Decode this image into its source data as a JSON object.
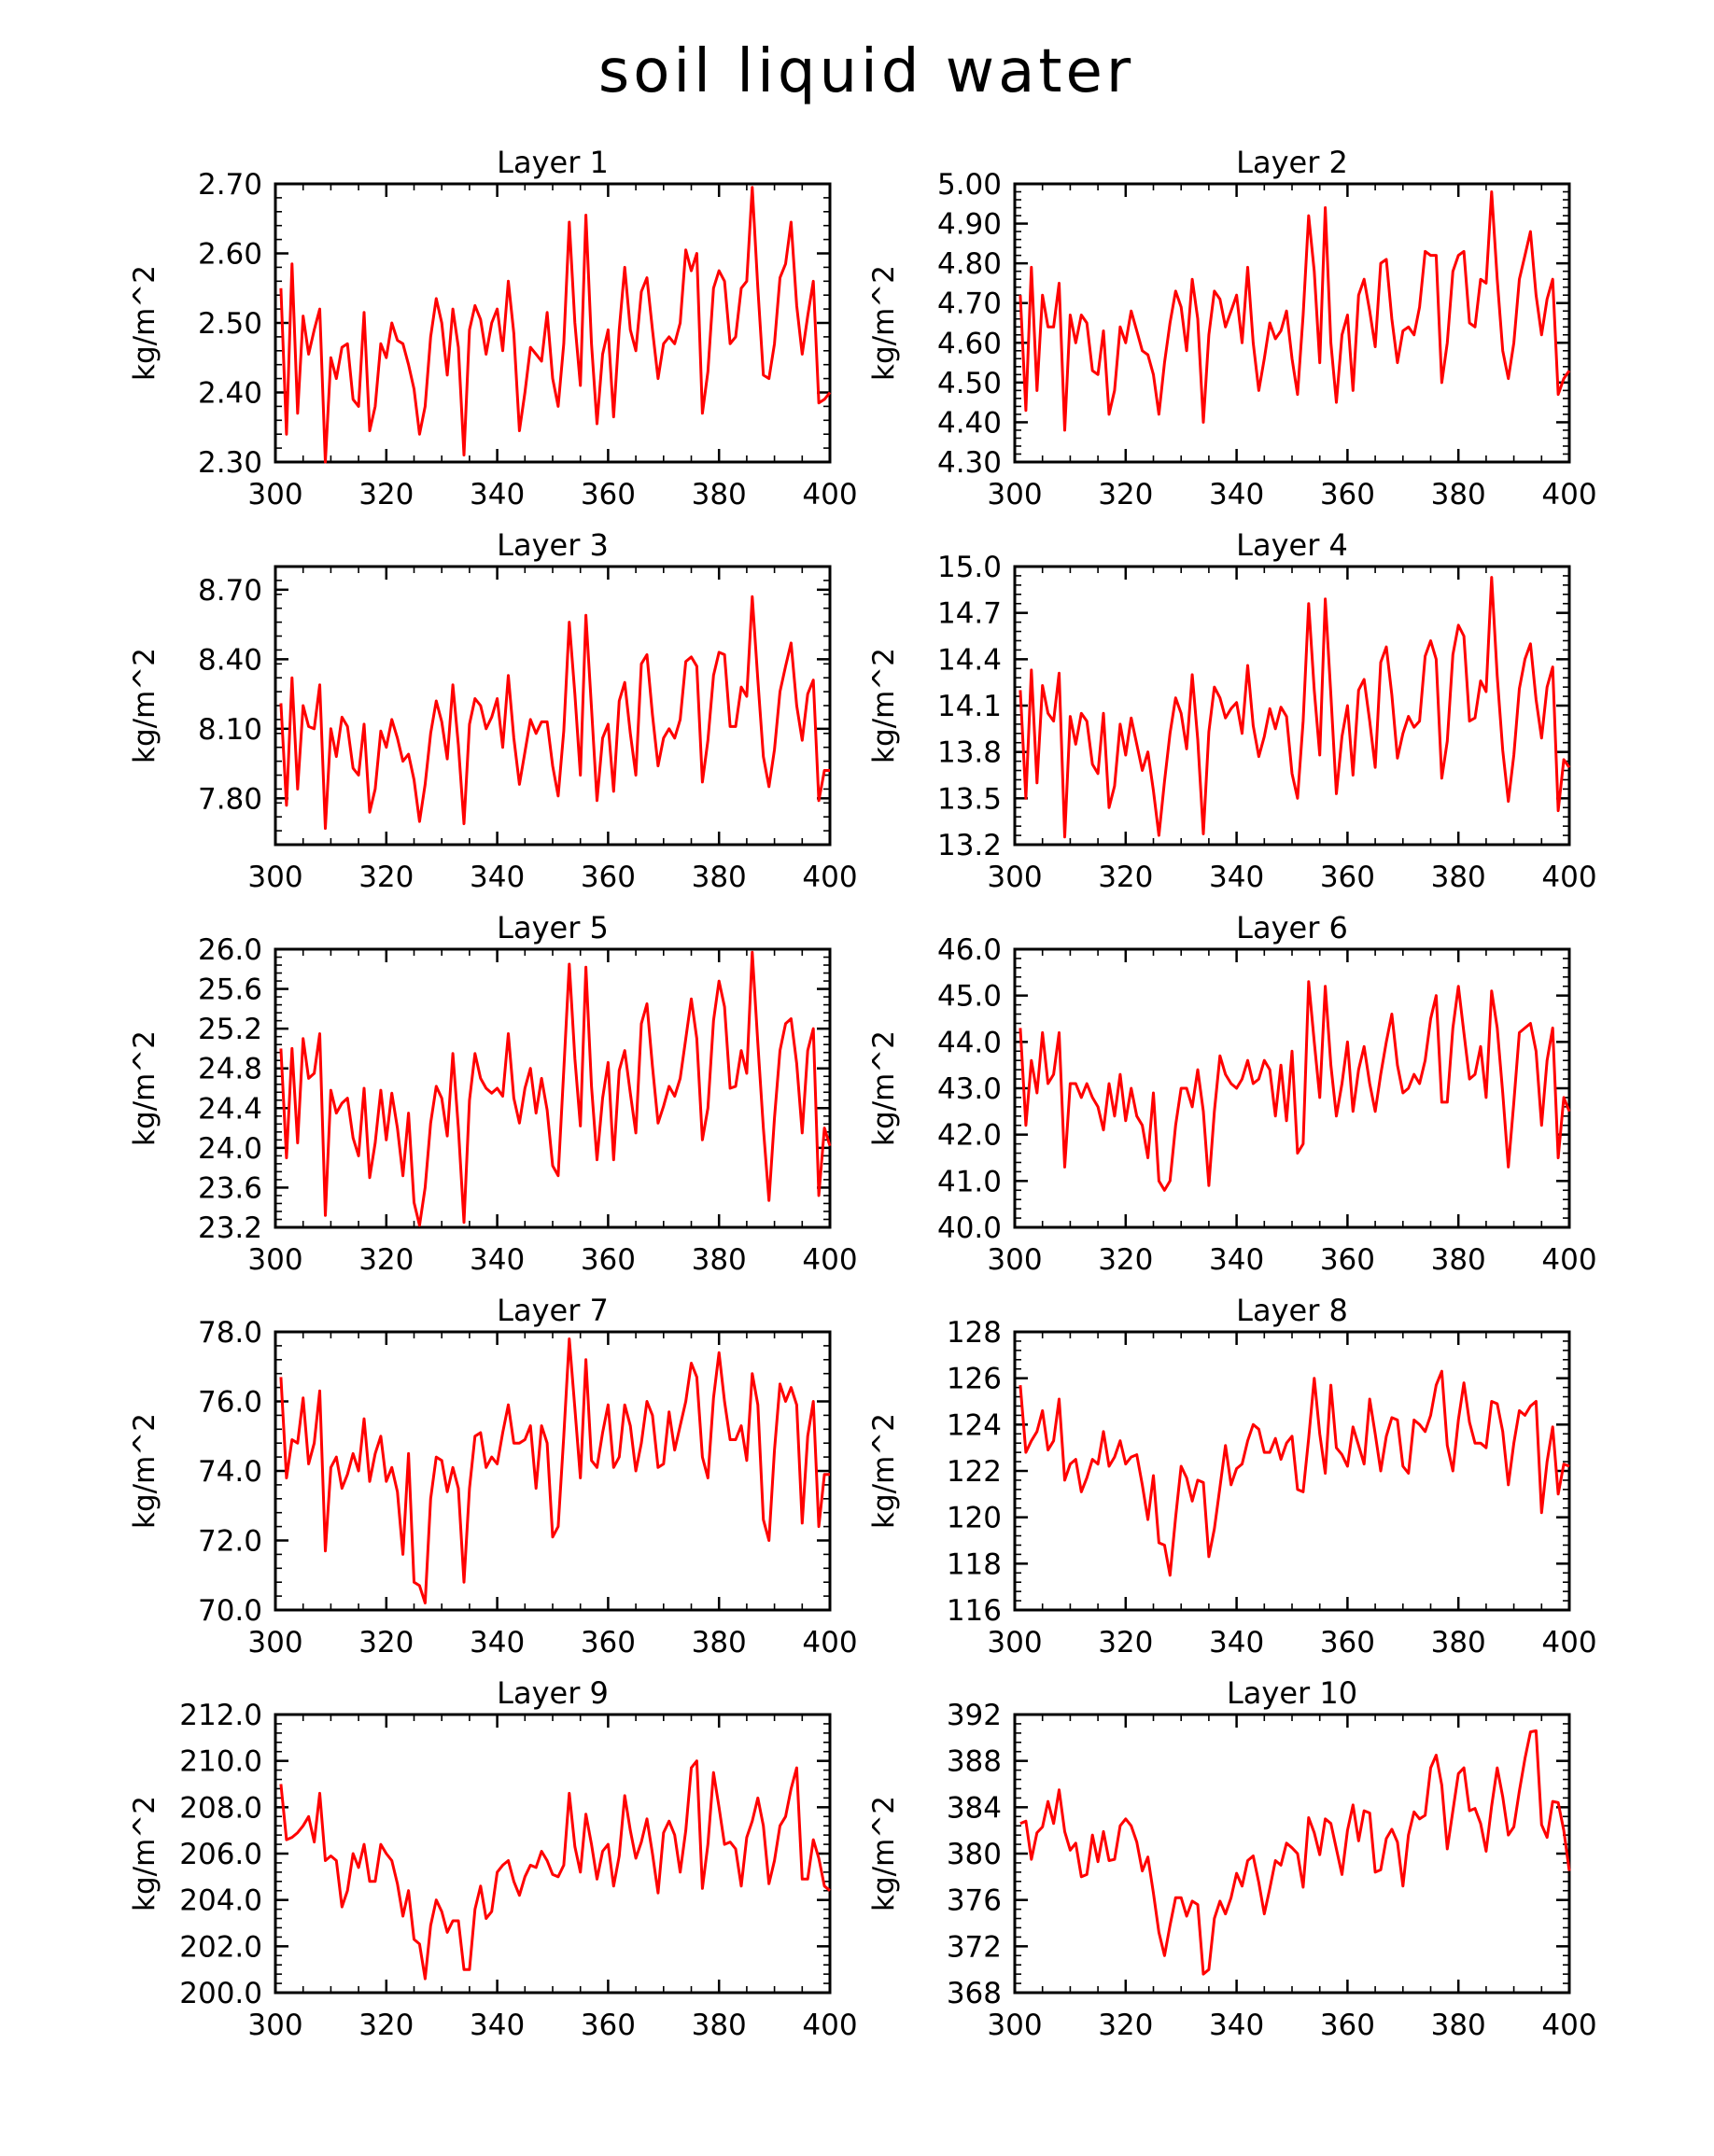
{
  "title": "soil liquid water",
  "colors": {
    "line": "#ff0000",
    "axis": "#000000",
    "background": "#ffffff"
  },
  "chart_data": [
    {
      "type": "line",
      "title": "Layer 1",
      "xlabel": "",
      "ylabel": "kg/m^2",
      "xlim": [
        300,
        400
      ],
      "ylim": [
        2.3,
        2.7
      ],
      "xticks": [
        300,
        320,
        340,
        360,
        380,
        400
      ],
      "yticks": [
        "2.30",
        "2.40",
        "2.50",
        "2.60",
        "2.70"
      ],
      "x_start": 301,
      "x_step": 1,
      "values": [
        2.55,
        2.34,
        2.585,
        2.37,
        2.51,
        2.455,
        2.49,
        2.52,
        2.3,
        2.45,
        2.42,
        2.465,
        2.47,
        2.39,
        2.38,
        2.515,
        2.345,
        2.38,
        2.47,
        2.45,
        2.5,
        2.475,
        2.47,
        2.44,
        2.405,
        2.34,
        2.38,
        2.48,
        2.535,
        2.5,
        2.425,
        2.52,
        2.465,
        2.31,
        2.49,
        2.525,
        2.505,
        2.455,
        2.5,
        2.52,
        2.46,
        2.56,
        2.485,
        2.345,
        2.4,
        2.465,
        2.455,
        2.445,
        2.515,
        2.42,
        2.38,
        2.47,
        2.645,
        2.5,
        2.41,
        2.655,
        2.47,
        2.355,
        2.455,
        2.49,
        2.365,
        2.49,
        2.58,
        2.49,
        2.46,
        2.545,
        2.565,
        2.49,
        2.42,
        2.47,
        2.48,
        2.47,
        2.5,
        2.605,
        2.575,
        2.6,
        2.37,
        2.43,
        2.55,
        2.575,
        2.56,
        2.47,
        2.48,
        2.55,
        2.56,
        2.695,
        2.55,
        2.425,
        2.42,
        2.47,
        2.565,
        2.585,
        2.645,
        2.525,
        2.455,
        2.51,
        2.56,
        2.385,
        2.39,
        2.4
      ]
    },
    {
      "type": "line",
      "title": "Layer 2",
      "xlabel": "",
      "ylabel": "kg/m^2",
      "xlim": [
        300,
        400
      ],
      "ylim": [
        4.3,
        5.0
      ],
      "xticks": [
        300,
        320,
        340,
        360,
        380,
        400
      ],
      "yticks": [
        "4.30",
        "4.40",
        "4.50",
        "4.60",
        "4.70",
        "4.80",
        "4.90",
        "5.00"
      ],
      "x_start": 301,
      "x_step": 1,
      "values": [
        4.72,
        4.43,
        4.79,
        4.48,
        4.72,
        4.64,
        4.64,
        4.75,
        4.38,
        4.67,
        4.6,
        4.67,
        4.65,
        4.53,
        4.52,
        4.63,
        4.42,
        4.48,
        4.64,
        4.6,
        4.68,
        4.63,
        4.58,
        4.57,
        4.52,
        4.42,
        4.55,
        4.65,
        4.73,
        4.69,
        4.58,
        4.76,
        4.66,
        4.4,
        4.62,
        4.73,
        4.71,
        4.64,
        4.68,
        4.72,
        4.6,
        4.79,
        4.6,
        4.48,
        4.56,
        4.65,
        4.61,
        4.63,
        4.68,
        4.56,
        4.47,
        4.67,
        4.92,
        4.78,
        4.55,
        4.94,
        4.6,
        4.45,
        4.62,
        4.67,
        4.48,
        4.72,
        4.76,
        4.68,
        4.59,
        4.8,
        4.81,
        4.66,
        4.55,
        4.63,
        4.64,
        4.62,
        4.69,
        4.83,
        4.82,
        4.82,
        4.5,
        4.6,
        4.78,
        4.82,
        4.83,
        4.65,
        4.64,
        4.76,
        4.75,
        4.98,
        4.76,
        4.58,
        4.51,
        4.6,
        4.76,
        4.82,
        4.88,
        4.72,
        4.62,
        4.71,
        4.76,
        4.47,
        4.51,
        4.53
      ]
    },
    {
      "type": "line",
      "title": "Layer 3",
      "xlabel": "",
      "ylabel": "kg/m^2",
      "xlim": [
        300,
        400
      ],
      "ylim": [
        7.6,
        8.8
      ],
      "xticks": [
        300,
        320,
        340,
        360,
        380,
        400
      ],
      "yticks": [
        "7.80",
        "8.10",
        "8.40",
        "8.70"
      ],
      "x_start": 301,
      "x_step": 1,
      "values": [
        8.21,
        7.77,
        8.32,
        7.84,
        8.2,
        8.11,
        8.1,
        8.29,
        7.67,
        8.1,
        7.98,
        8.15,
        8.11,
        7.93,
        7.9,
        8.12,
        7.74,
        7.84,
        8.09,
        8.02,
        8.14,
        8.06,
        7.96,
        7.99,
        7.88,
        7.7,
        7.86,
        8.08,
        8.22,
        8.13,
        7.97,
        8.29,
        8.03,
        7.69,
        8.12,
        8.23,
        8.2,
        8.1,
        8.15,
        8.23,
        8.02,
        8.33,
        8.06,
        7.86,
        8.0,
        8.14,
        8.08,
        8.13,
        8.13,
        7.94,
        7.81,
        8.09,
        8.56,
        8.25,
        7.9,
        8.59,
        8.19,
        7.79,
        8.06,
        8.12,
        7.83,
        8.22,
        8.3,
        8.08,
        7.9,
        8.38,
        8.42,
        8.16,
        7.94,
        8.06,
        8.1,
        8.06,
        8.14,
        8.39,
        8.41,
        8.37,
        7.87,
        8.05,
        8.33,
        8.43,
        8.42,
        8.11,
        8.11,
        8.28,
        8.24,
        8.67,
        8.31,
        7.98,
        7.85,
        8.01,
        8.26,
        8.37,
        8.47,
        8.2,
        8.05,
        8.25,
        8.31,
        7.79,
        7.92,
        7.92
      ]
    },
    {
      "type": "line",
      "title": "Layer 4",
      "xlabel": "",
      "ylabel": "kg/m^2",
      "xlim": [
        300,
        400
      ],
      "ylim": [
        13.2,
        15.0
      ],
      "xticks": [
        300,
        320,
        340,
        360,
        380,
        400
      ],
      "yticks": [
        "13.2",
        "13.5",
        "13.8",
        "14.1",
        "14.4",
        "14.7",
        "15.0"
      ],
      "x_start": 301,
      "x_step": 1,
      "values": [
        14.2,
        13.5,
        14.33,
        13.6,
        14.23,
        14.05,
        14.0,
        14.31,
        13.25,
        14.03,
        13.85,
        14.05,
        14.0,
        13.72,
        13.66,
        14.05,
        13.44,
        13.58,
        13.98,
        13.78,
        14.02,
        13.85,
        13.68,
        13.8,
        13.55,
        13.26,
        13.61,
        13.92,
        14.15,
        14.05,
        13.82,
        14.3,
        13.88,
        13.27,
        13.93,
        14.22,
        14.15,
        14.02,
        14.08,
        14.12,
        13.92,
        14.36,
        13.97,
        13.77,
        13.9,
        14.08,
        13.95,
        14.09,
        14.03,
        13.66,
        13.5,
        14.0,
        14.76,
        14.2,
        13.78,
        14.79,
        14.17,
        13.53,
        13.9,
        14.1,
        13.65,
        14.2,
        14.27,
        14.0,
        13.7,
        14.38,
        14.48,
        14.17,
        13.76,
        13.92,
        14.03,
        13.96,
        14.0,
        14.42,
        14.52,
        14.4,
        13.63,
        13.87,
        14.43,
        14.62,
        14.55,
        14.0,
        14.02,
        14.26,
        14.19,
        14.93,
        14.29,
        13.81,
        13.48,
        13.78,
        14.21,
        14.4,
        14.5,
        14.14,
        13.89,
        14.22,
        14.35,
        13.42,
        13.75,
        13.7
      ]
    },
    {
      "type": "line",
      "title": "Layer 5",
      "xlabel": "",
      "ylabel": "kg/m^2",
      "xlim": [
        300,
        400
      ],
      "ylim": [
        23.2,
        26.0
      ],
      "xticks": [
        300,
        320,
        340,
        360,
        380,
        400
      ],
      "yticks": [
        "23.2",
        "23.6",
        "24.0",
        "24.4",
        "24.8",
        "25.2",
        "25.6",
        "26.0"
      ],
      "x_start": 301,
      "x_step": 1,
      "values": [
        25.0,
        23.9,
        25.0,
        24.05,
        25.1,
        24.7,
        24.75,
        25.15,
        23.32,
        24.58,
        24.35,
        24.45,
        24.5,
        24.1,
        23.92,
        24.6,
        23.7,
        24.05,
        24.58,
        24.08,
        24.55,
        24.2,
        23.72,
        24.35,
        23.45,
        23.22,
        23.6,
        24.25,
        24.62,
        24.5,
        24.12,
        24.95,
        24.2,
        23.25,
        24.48,
        24.95,
        24.7,
        24.6,
        24.55,
        24.6,
        24.52,
        25.15,
        24.5,
        24.25,
        24.6,
        24.8,
        24.35,
        24.7,
        24.38,
        23.82,
        23.72,
        24.78,
        25.85,
        24.9,
        24.22,
        25.82,
        24.62,
        23.88,
        24.5,
        24.86,
        23.88,
        24.78,
        24.98,
        24.55,
        24.15,
        25.25,
        25.45,
        24.82,
        24.25,
        24.42,
        24.62,
        24.52,
        24.7,
        25.1,
        25.5,
        25.1,
        24.08,
        24.4,
        25.28,
        25.68,
        25.42,
        24.6,
        24.62,
        24.98,
        24.75,
        25.97,
        25.05,
        24.2,
        23.47,
        24.3,
        24.98,
        25.25,
        25.3,
        24.85,
        24.15,
        24.98,
        25.2,
        23.52,
        24.2,
        24.02
      ]
    },
    {
      "type": "line",
      "title": "Layer 6",
      "xlabel": "",
      "ylabel": "kg/m^2",
      "xlim": [
        300,
        400
      ],
      "ylim": [
        40.0,
        46.0
      ],
      "xticks": [
        300,
        320,
        340,
        360,
        380,
        400
      ],
      "yticks": [
        "40.0",
        "41.0",
        "42.0",
        "43.0",
        "44.0",
        "45.0",
        "46.0"
      ],
      "x_start": 301,
      "x_step": 1,
      "values": [
        44.3,
        42.2,
        43.6,
        42.9,
        44.2,
        43.1,
        43.3,
        44.2,
        41.3,
        43.1,
        43.1,
        42.8,
        43.1,
        42.8,
        42.6,
        42.1,
        43.1,
        42.4,
        43.3,
        42.3,
        43.0,
        42.4,
        42.2,
        41.5,
        42.9,
        41.0,
        40.8,
        41.0,
        42.2,
        43.0,
        43.0,
        42.6,
        43.4,
        42.5,
        40.9,
        42.5,
        43.7,
        43.3,
        43.1,
        43.0,
        43.2,
        43.6,
        43.1,
        43.2,
        43.6,
        43.4,
        42.4,
        43.5,
        42.3,
        43.8,
        41.6,
        41.8,
        45.3,
        44.0,
        42.8,
        45.2,
        43.5,
        42.4,
        43.1,
        44.0,
        42.5,
        43.4,
        43.9,
        43.1,
        42.5,
        43.3,
        44.0,
        44.6,
        43.5,
        42.9,
        43.0,
        43.3,
        43.1,
        43.6,
        44.5,
        45.0,
        42.7,
        42.7,
        44.3,
        45.2,
        44.2,
        43.2,
        43.3,
        43.9,
        42.8,
        45.1,
        44.3,
        42.9,
        41.3,
        42.7,
        44.2,
        44.3,
        44.4,
        43.8,
        42.2,
        43.6,
        44.3,
        41.5,
        42.8,
        42.5
      ]
    },
    {
      "type": "line",
      "title": "Layer 7",
      "xlabel": "",
      "ylabel": "kg/m^2",
      "xlim": [
        300,
        400
      ],
      "ylim": [
        70.0,
        78.0
      ],
      "xticks": [
        300,
        320,
        340,
        360,
        380,
        400
      ],
      "yticks": [
        "70.0",
        "72.0",
        "74.0",
        "76.0",
        "78.0"
      ],
      "x_start": 301,
      "x_step": 1,
      "values": [
        76.7,
        73.8,
        74.9,
        74.8,
        76.1,
        74.2,
        74.8,
        76.3,
        71.7,
        74.1,
        74.4,
        73.5,
        73.9,
        74.5,
        74.0,
        75.5,
        73.7,
        74.5,
        75.0,
        73.7,
        74.1,
        73.4,
        71.6,
        74.5,
        70.8,
        70.7,
        70.2,
        73.2,
        74.4,
        74.3,
        73.4,
        74.1,
        73.5,
        70.8,
        73.5,
        75.0,
        75.1,
        74.1,
        74.4,
        74.2,
        75.1,
        75.9,
        74.8,
        74.8,
        74.9,
        75.3,
        73.5,
        75.3,
        74.8,
        72.1,
        72.4,
        75.0,
        77.8,
        75.8,
        73.8,
        77.2,
        74.3,
        74.1,
        75.1,
        75.9,
        74.1,
        74.4,
        75.9,
        75.3,
        74.0,
        74.8,
        76.0,
        75.6,
        74.1,
        74.2,
        75.7,
        74.6,
        75.3,
        76.0,
        77.1,
        76.7,
        74.4,
        73.8,
        76.1,
        77.4,
        76.0,
        74.9,
        74.9,
        75.3,
        74.3,
        76.8,
        75.9,
        72.6,
        72.0,
        74.6,
        76.5,
        76.0,
        76.4,
        75.9,
        72.5,
        75.0,
        76.0,
        72.4,
        73.9,
        73.9
      ]
    },
    {
      "type": "line",
      "title": "Layer 8",
      "xlabel": "",
      "ylabel": "kg/m^2",
      "xlim": [
        300,
        400
      ],
      "ylim": [
        116,
        128
      ],
      "xticks": [
        300,
        320,
        340,
        360,
        380,
        400
      ],
      "yticks": [
        "116",
        "118",
        "120",
        "122",
        "124",
        "126",
        "128"
      ],
      "x_start": 301,
      "x_step": 1,
      "values": [
        125.7,
        122.8,
        123.3,
        123.7,
        124.6,
        122.9,
        123.3,
        125.1,
        121.6,
        122.3,
        122.5,
        121.1,
        121.7,
        122.5,
        122.3,
        123.7,
        122.2,
        122.6,
        123.3,
        122.3,
        122.6,
        122.7,
        121.4,
        119.9,
        121.8,
        118.9,
        118.8,
        117.5,
        120.0,
        122.2,
        121.7,
        120.7,
        121.6,
        121.5,
        118.3,
        119.5,
        121.3,
        123.1,
        121.4,
        122.1,
        122.3,
        123.3,
        124.0,
        123.8,
        122.8,
        122.8,
        123.4,
        122.5,
        123.2,
        123.5,
        121.2,
        121.1,
        123.4,
        126.0,
        123.6,
        121.9,
        125.7,
        123.0,
        122.7,
        122.2,
        123.9,
        123.1,
        122.3,
        125.1,
        123.6,
        122.0,
        123.5,
        124.3,
        124.2,
        122.2,
        121.9,
        124.2,
        124.0,
        123.7,
        124.4,
        125.7,
        126.3,
        123.1,
        122.0,
        124.2,
        125.8,
        124.1,
        123.2,
        123.2,
        123.0,
        125.0,
        124.9,
        123.7,
        121.4,
        123.2,
        124.6,
        124.4,
        124.8,
        125.0,
        120.2,
        122.4,
        123.9,
        121.0,
        122.3,
        122.2
      ]
    },
    {
      "type": "line",
      "title": "Layer 9",
      "xlabel": "",
      "ylabel": "kg/m^2",
      "xlim": [
        300,
        400
      ],
      "ylim": [
        200.0,
        212.0
      ],
      "xticks": [
        300,
        320,
        340,
        360,
        380,
        400
      ],
      "yticks": [
        "200.0",
        "202.0",
        "204.0",
        "206.0",
        "208.0",
        "210.0",
        "212.0"
      ],
      "x_start": 301,
      "x_step": 1,
      "values": [
        209.0,
        206.6,
        206.7,
        206.9,
        207.2,
        207.6,
        206.5,
        208.6,
        205.7,
        205.9,
        205.7,
        203.7,
        204.4,
        206.0,
        205.4,
        206.4,
        204.8,
        204.8,
        206.4,
        206.0,
        205.7,
        204.7,
        203.3,
        204.4,
        202.3,
        202.1,
        200.6,
        202.9,
        204.0,
        203.5,
        202.6,
        203.1,
        203.1,
        201.0,
        201.0,
        203.6,
        204.6,
        203.2,
        203.5,
        205.2,
        205.5,
        205.7,
        204.8,
        204.2,
        205.0,
        205.5,
        205.4,
        206.1,
        205.7,
        205.1,
        205.0,
        205.5,
        208.6,
        206.3,
        205.2,
        207.7,
        206.4,
        204.9,
        206.1,
        206.4,
        204.6,
        205.9,
        208.5,
        207.0,
        205.8,
        206.5,
        207.5,
        206.0,
        204.3,
        206.9,
        207.4,
        206.8,
        205.2,
        207.0,
        209.7,
        210.0,
        204.5,
        206.4,
        209.5,
        208.0,
        206.4,
        206.5,
        206.2,
        204.6,
        206.7,
        207.4,
        208.4,
        207.2,
        204.7,
        205.7,
        207.2,
        207.6,
        208.8,
        209.7,
        204.9,
        204.9,
        206.6,
        205.8,
        204.6,
        204.4
      ]
    },
    {
      "type": "line",
      "title": "Layer 10",
      "xlabel": "",
      "ylabel": "kg/m^2",
      "xlim": [
        300,
        400
      ],
      "ylim": [
        368,
        392
      ],
      "xticks": [
        300,
        320,
        340,
        360,
        380,
        400
      ],
      "yticks": [
        "368",
        "372",
        "376",
        "380",
        "384",
        "388",
        "392"
      ],
      "x_start": 301,
      "x_step": 1,
      "values": [
        382.6,
        382.8,
        379.5,
        381.8,
        382.3,
        384.5,
        382.6,
        385.5,
        381.9,
        380.3,
        380.9,
        378.0,
        378.2,
        381.6,
        379.3,
        381.9,
        379.4,
        379.5,
        382.4,
        383.0,
        382.4,
        381.0,
        378.5,
        379.7,
        376.6,
        373.2,
        371.2,
        373.8,
        376.2,
        376.2,
        374.6,
        375.9,
        375.6,
        369.6,
        370.0,
        374.4,
        375.9,
        374.8,
        376.2,
        378.3,
        377.2,
        379.4,
        379.8,
        377.5,
        374.8,
        377.0,
        379.4,
        379.0,
        380.9,
        380.5,
        380.0,
        377.1,
        383.1,
        381.8,
        379.9,
        383.0,
        382.6,
        380.4,
        378.2,
        382.0,
        384.2,
        381.1,
        383.7,
        383.5,
        378.4,
        378.6,
        381.3,
        382.1,
        381.0,
        377.2,
        381.6,
        383.6,
        383.0,
        383.3,
        387.4,
        388.5,
        385.9,
        380.4,
        383.7,
        386.9,
        387.4,
        383.7,
        383.9,
        382.6,
        380.2,
        384.1,
        387.4,
        384.9,
        381.6,
        382.3,
        385.4,
        388.2,
        390.5,
        390.6,
        382.5,
        381.4,
        384.5,
        384.4,
        382.0,
        378.5
      ]
    }
  ]
}
